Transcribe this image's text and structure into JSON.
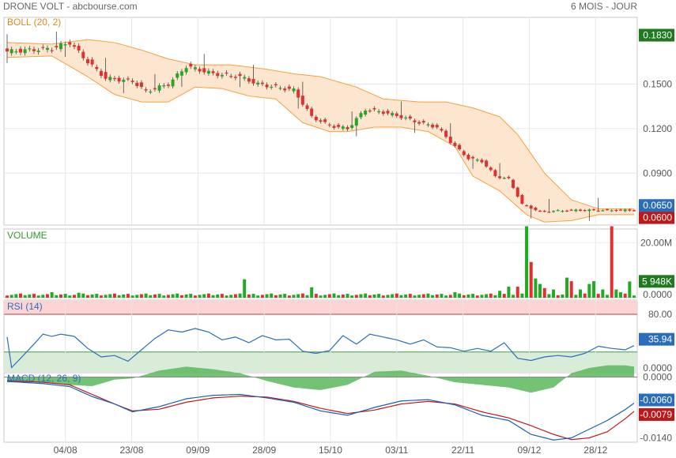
{
  "header": {
    "title": "DRONE VOLT - abcbourse.com",
    "period": "6 MOIS - JOUR"
  },
  "colors": {
    "up": "#22aa22",
    "down": "#e03030",
    "boll_band": "#f5a040",
    "boll_fill": "#fde6cf",
    "volume_label": "#339933",
    "rsi_line": "#2a6ebb",
    "macd_line": "#1a5fb4",
    "signal_line": "#c01818",
    "histogram": "#5cb85c",
    "tag_green": "#1e7a1e",
    "tag_blue": "#2a6ebb",
    "tag_red": "#c01818"
  },
  "x_axis": {
    "labels": [
      "04/08",
      "23/08",
      "09/09",
      "28/09",
      "15/10",
      "03/11",
      "22/11",
      "09/12",
      "28/12"
    ]
  },
  "chart_data": [
    {
      "panel": "price",
      "type": "candlestick",
      "indicator": "BOLL (20, 2)",
      "y_ticks": [
        "0.1500",
        "0.1200",
        "0.0900"
      ],
      "ylim": [
        0.055,
        0.195
      ],
      "current_tags": {
        "top": "0.1830",
        "last": "0.0650",
        "lower": "0.0600"
      },
      "anchors": [
        {
          "i": 0,
          "c": 0.172
        },
        {
          "i": 10,
          "c": 0.174
        },
        {
          "i": 14,
          "c": 0.178
        },
        {
          "i": 18,
          "c": 0.165
        },
        {
          "i": 22,
          "c": 0.154
        },
        {
          "i": 28,
          "c": 0.152
        },
        {
          "i": 31,
          "c": 0.145
        },
        {
          "i": 36,
          "c": 0.15
        },
        {
          "i": 40,
          "c": 0.162
        },
        {
          "i": 46,
          "c": 0.157
        },
        {
          "i": 52,
          "c": 0.155
        },
        {
          "i": 56,
          "c": 0.15
        },
        {
          "i": 60,
          "c": 0.148
        },
        {
          "i": 64,
          "c": 0.146
        },
        {
          "i": 68,
          "c": 0.128
        },
        {
          "i": 72,
          "c": 0.122
        },
        {
          "i": 76,
          "c": 0.12
        },
        {
          "i": 80,
          "c": 0.133
        },
        {
          "i": 84,
          "c": 0.131
        },
        {
          "i": 88,
          "c": 0.128
        },
        {
          "i": 92,
          "c": 0.124
        },
        {
          "i": 96,
          "c": 0.121
        },
        {
          "i": 100,
          "c": 0.108
        },
        {
          "i": 103,
          "c": 0.1
        },
        {
          "i": 106,
          "c": 0.098
        },
        {
          "i": 109,
          "c": 0.088
        },
        {
          "i": 112,
          "c": 0.086
        },
        {
          "i": 115,
          "c": 0.069
        },
        {
          "i": 119,
          "c": 0.064
        },
        {
          "i": 126,
          "c": 0.065
        },
        {
          "i": 132,
          "c": 0.065
        }
      ],
      "bollinger": {
        "upper": [
          {
            "i": 0,
            "v": 0.178
          },
          {
            "i": 10,
            "v": 0.177
          },
          {
            "i": 18,
            "v": 0.18
          },
          {
            "i": 24,
            "v": 0.178
          },
          {
            "i": 30,
            "v": 0.173
          },
          {
            "i": 36,
            "v": 0.167
          },
          {
            "i": 42,
            "v": 0.163
          },
          {
            "i": 50,
            "v": 0.163
          },
          {
            "i": 58,
            "v": 0.16
          },
          {
            "i": 64,
            "v": 0.157
          },
          {
            "i": 70,
            "v": 0.155
          },
          {
            "i": 78,
            "v": 0.148
          },
          {
            "i": 84,
            "v": 0.14
          },
          {
            "i": 92,
            "v": 0.138
          },
          {
            "i": 98,
            "v": 0.138
          },
          {
            "i": 104,
            "v": 0.134
          },
          {
            "i": 110,
            "v": 0.128
          },
          {
            "i": 114,
            "v": 0.116
          },
          {
            "i": 120,
            "v": 0.09
          },
          {
            "i": 126,
            "v": 0.072
          },
          {
            "i": 132,
            "v": 0.066
          }
        ],
        "lower": [
          {
            "i": 0,
            "v": 0.168
          },
          {
            "i": 10,
            "v": 0.169
          },
          {
            "i": 18,
            "v": 0.155
          },
          {
            "i": 24,
            "v": 0.143
          },
          {
            "i": 30,
            "v": 0.138
          },
          {
            "i": 36,
            "v": 0.138
          },
          {
            "i": 42,
            "v": 0.148
          },
          {
            "i": 48,
            "v": 0.147
          },
          {
            "i": 54,
            "v": 0.142
          },
          {
            "i": 60,
            "v": 0.14
          },
          {
            "i": 66,
            "v": 0.124
          },
          {
            "i": 72,
            "v": 0.118
          },
          {
            "i": 76,
            "v": 0.118
          },
          {
            "i": 82,
            "v": 0.121
          },
          {
            "i": 88,
            "v": 0.121
          },
          {
            "i": 94,
            "v": 0.118
          },
          {
            "i": 100,
            "v": 0.108
          },
          {
            "i": 104,
            "v": 0.088
          },
          {
            "i": 110,
            "v": 0.078
          },
          {
            "i": 116,
            "v": 0.062
          },
          {
            "i": 120,
            "v": 0.057
          },
          {
            "i": 126,
            "v": 0.058
          },
          {
            "i": 132,
            "v": 0.062
          }
        ]
      }
    },
    {
      "panel": "volume",
      "type": "bar",
      "label": "VOLUME",
      "y_ticks": [
        "20.00M"
      ],
      "ylim": [
        0,
        25
      ],
      "current_tags": {
        "last": "5 948K",
        "zero": "0.0000"
      },
      "default": 0.8,
      "spikes": [
        {
          "i": 10,
          "v": 2.0
        },
        {
          "i": 16,
          "v": 1.8
        },
        {
          "i": 53,
          "v": 6.7
        },
        {
          "i": 68,
          "v": 3.8
        },
        {
          "i": 100,
          "v": 2.0
        },
        {
          "i": 110,
          "v": 2.5
        },
        {
          "i": 112,
          "v": 4.0
        },
        {
          "i": 114,
          "v": 4.0
        },
        {
          "i": 116,
          "v": 26.0
        },
        {
          "i": 117,
          "v": 13.0
        },
        {
          "i": 118,
          "v": 7.0
        },
        {
          "i": 119,
          "v": 5.0
        },
        {
          "i": 120,
          "v": 3.5
        },
        {
          "i": 122,
          "v": 3.0
        },
        {
          "i": 125,
          "v": 7.3
        },
        {
          "i": 126,
          "v": 6.0
        },
        {
          "i": 128,
          "v": 3.0
        },
        {
          "i": 130,
          "v": 5.0
        },
        {
          "i": 131,
          "v": 6.0
        },
        {
          "i": 133,
          "v": 3.0
        },
        {
          "i": 135,
          "v": 26.0
        },
        {
          "i": 136,
          "v": 3.0
        },
        {
          "i": 137,
          "v": 2.0
        },
        {
          "i": 138,
          "v": 1.5
        },
        {
          "i": 139,
          "v": 5.9
        }
      ]
    },
    {
      "panel": "rsi",
      "type": "line",
      "label": "RSI (14)",
      "y_ticks": [
        "80.00",
        "0.0000"
      ],
      "ylim": [
        0,
        100
      ],
      "overbought": 80,
      "oversold": 27,
      "current_tag": "35.94",
      "points": [
        {
          "i": 0,
          "v": 48
        },
        {
          "i": 1,
          "v": 5
        },
        {
          "i": 3,
          "v": 18
        },
        {
          "i": 6,
          "v": 38
        },
        {
          "i": 8,
          "v": 52
        },
        {
          "i": 10,
          "v": 49
        },
        {
          "i": 12,
          "v": 52
        },
        {
          "i": 15,
          "v": 49
        },
        {
          "i": 18,
          "v": 32
        },
        {
          "i": 21,
          "v": 20
        },
        {
          "i": 24,
          "v": 22
        },
        {
          "i": 27,
          "v": 14
        },
        {
          "i": 30,
          "v": 30
        },
        {
          "i": 33,
          "v": 46
        },
        {
          "i": 36,
          "v": 58
        },
        {
          "i": 39,
          "v": 55
        },
        {
          "i": 42,
          "v": 60
        },
        {
          "i": 45,
          "v": 55
        },
        {
          "i": 48,
          "v": 44
        },
        {
          "i": 51,
          "v": 48
        },
        {
          "i": 54,
          "v": 40
        },
        {
          "i": 57,
          "v": 50
        },
        {
          "i": 60,
          "v": 44
        },
        {
          "i": 63,
          "v": 45
        },
        {
          "i": 66,
          "v": 28
        },
        {
          "i": 69,
          "v": 25
        },
        {
          "i": 72,
          "v": 29
        },
        {
          "i": 75,
          "v": 50
        },
        {
          "i": 78,
          "v": 38
        },
        {
          "i": 81,
          "v": 52
        },
        {
          "i": 84,
          "v": 48
        },
        {
          "i": 87,
          "v": 44
        },
        {
          "i": 90,
          "v": 38
        },
        {
          "i": 93,
          "v": 44
        },
        {
          "i": 96,
          "v": 34
        },
        {
          "i": 99,
          "v": 33
        },
        {
          "i": 102,
          "v": 28
        },
        {
          "i": 105,
          "v": 32
        },
        {
          "i": 108,
          "v": 28
        },
        {
          "i": 111,
          "v": 40
        },
        {
          "i": 114,
          "v": 18
        },
        {
          "i": 117,
          "v": 15
        },
        {
          "i": 120,
          "v": 20
        },
        {
          "i": 123,
          "v": 22
        },
        {
          "i": 126,
          "v": 20
        },
        {
          "i": 129,
          "v": 25
        },
        {
          "i": 132,
          "v": 35
        },
        {
          "i": 135,
          "v": 32
        },
        {
          "i": 138,
          "v": 30
        },
        {
          "i": 140,
          "v": 35.94
        }
      ]
    },
    {
      "panel": "macd",
      "type": "line",
      "label": "MACD (12, 26, 9)",
      "y_ticks": [
        "0.0000",
        "-0.0140"
      ],
      "ylim": [
        -0.015,
        0.001
      ],
      "current_tags": {
        "macd": "-0.0060",
        "signal": "-0.0079"
      },
      "macd": [
        {
          "i": 0,
          "v": -0.001
        },
        {
          "i": 8,
          "v": -0.0015
        },
        {
          "i": 14,
          "v": -0.0022
        },
        {
          "i": 19,
          "v": -0.0045
        },
        {
          "i": 24,
          "v": -0.0062
        },
        {
          "i": 28,
          "v": -0.008
        },
        {
          "i": 34,
          "v": -0.0068
        },
        {
          "i": 40,
          "v": -0.005
        },
        {
          "i": 46,
          "v": -0.0042
        },
        {
          "i": 52,
          "v": -0.004
        },
        {
          "i": 58,
          "v": -0.0048
        },
        {
          "i": 64,
          "v": -0.0058
        },
        {
          "i": 70,
          "v": -0.0078
        },
        {
          "i": 76,
          "v": -0.0088
        },
        {
          "i": 82,
          "v": -0.007
        },
        {
          "i": 88,
          "v": -0.0055
        },
        {
          "i": 94,
          "v": -0.0052
        },
        {
          "i": 100,
          "v": -0.0064
        },
        {
          "i": 106,
          "v": -0.0088
        },
        {
          "i": 112,
          "v": -0.01
        },
        {
          "i": 117,
          "v": -0.0132
        },
        {
          "i": 122,
          "v": -0.0145
        },
        {
          "i": 126,
          "v": -0.014
        },
        {
          "i": 130,
          "v": -0.012
        },
        {
          "i": 134,
          "v": -0.01
        },
        {
          "i": 138,
          "v": -0.0075
        },
        {
          "i": 140,
          "v": -0.006
        }
      ],
      "signal": [
        {
          "i": 0,
          "v": -0.0008
        },
        {
          "i": 8,
          "v": -0.0012
        },
        {
          "i": 14,
          "v": -0.0018
        },
        {
          "i": 19,
          "v": -0.004
        },
        {
          "i": 24,
          "v": -0.0062
        },
        {
          "i": 28,
          "v": -0.0078
        },
        {
          "i": 34,
          "v": -0.0074
        },
        {
          "i": 40,
          "v": -0.0058
        },
        {
          "i": 46,
          "v": -0.0048
        },
        {
          "i": 52,
          "v": -0.0044
        },
        {
          "i": 58,
          "v": -0.0046
        },
        {
          "i": 64,
          "v": -0.0056
        },
        {
          "i": 70,
          "v": -0.0072
        },
        {
          "i": 76,
          "v": -0.0084
        },
        {
          "i": 82,
          "v": -0.0076
        },
        {
          "i": 88,
          "v": -0.0062
        },
        {
          "i": 94,
          "v": -0.0056
        },
        {
          "i": 100,
          "v": -0.0062
        },
        {
          "i": 106,
          "v": -0.008
        },
        {
          "i": 112,
          "v": -0.0094
        },
        {
          "i": 117,
          "v": -0.0112
        },
        {
          "i": 122,
          "v": -0.0132
        },
        {
          "i": 126,
          "v": -0.0144
        },
        {
          "i": 130,
          "v": -0.014
        },
        {
          "i": 134,
          "v": -0.0126
        },
        {
          "i": 138,
          "v": -0.0096
        },
        {
          "i": 140,
          "v": -0.0079
        }
      ],
      "histogram": [
        {
          "i": 0,
          "v": -0.0004
        },
        {
          "i": 8,
          "v": -0.0004
        },
        {
          "i": 14,
          "v": -0.0006
        },
        {
          "i": 19,
          "v": -0.0007
        },
        {
          "i": 24,
          "v": -0.0002
        },
        {
          "i": 28,
          "v": -0.0001
        },
        {
          "i": 34,
          "v": 0.0005
        },
        {
          "i": 40,
          "v": 0.0008
        },
        {
          "i": 46,
          "v": 0.0006
        },
        {
          "i": 52,
          "v": 0.0003
        },
        {
          "i": 58,
          "v": -0.0003
        },
        {
          "i": 64,
          "v": -0.0008
        },
        {
          "i": 70,
          "v": -0.001
        },
        {
          "i": 76,
          "v": -0.0006
        },
        {
          "i": 82,
          "v": 0.0004
        },
        {
          "i": 88,
          "v": 0.0005
        },
        {
          "i": 94,
          "v": 0.0001
        },
        {
          "i": 100,
          "v": -0.0004
        },
        {
          "i": 106,
          "v": -0.0006
        },
        {
          "i": 112,
          "v": -0.0008
        },
        {
          "i": 117,
          "v": -0.0012
        },
        {
          "i": 122,
          "v": -0.0008
        },
        {
          "i": 126,
          "v": 0.0003
        },
        {
          "i": 130,
          "v": 0.0007
        },
        {
          "i": 134,
          "v": 0.0009
        },
        {
          "i": 138,
          "v": 0.0009
        },
        {
          "i": 140,
          "v": 0.0008
        }
      ]
    }
  ]
}
